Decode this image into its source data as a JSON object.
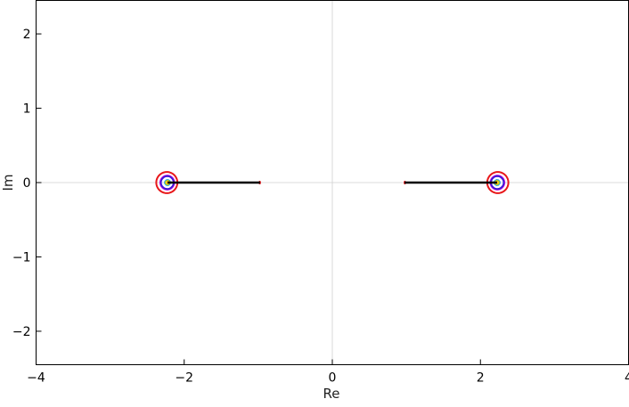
{
  "chart_data": {
    "type": "line",
    "title": "",
    "xlabel": "Re",
    "ylabel": "Im",
    "xlim": [
      -4,
      4
    ],
    "ylim": [
      -2.45,
      2.45
    ],
    "x_ticks": [
      -4,
      -2,
      0,
      2,
      4
    ],
    "y_ticks": [
      -2,
      -1,
      0,
      1,
      2
    ],
    "x_tick_labels": [
      "−4",
      "−2",
      "0",
      "2",
      "4"
    ],
    "y_tick_labels": [
      "−2",
      "−1",
      "0",
      "1",
      "2"
    ],
    "grid": "axes only",
    "foci": [
      -2.225,
      -0.975,
      0.975,
      2.225
    ],
    "series": [
      {
        "color": "#e8171a",
        "level": 0.125,
        "kind": "outer"
      },
      {
        "color": "#e11ce3",
        "level": 0.0225,
        "kind": "outer"
      },
      {
        "color": "#3f17d8",
        "level": 0.0,
        "kind": "lemniscate"
      },
      {
        "color": "#1c9be6",
        "level": -0.23,
        "kind": "pair"
      },
      {
        "color": "#25e899",
        "level": -0.32,
        "kind": "pair"
      },
      {
        "color": "#52d81b",
        "level": -0.345,
        "kind": "figure8"
      },
      {
        "color": "#f5c20b",
        "level": -0.363,
        "kind": "circles"
      }
    ],
    "segments": [
      {
        "color": "#000000",
        "x": [
          -2.225,
          -0.975
        ],
        "y": [
          0,
          0
        ]
      },
      {
        "color": "#000000",
        "x": [
          0.975,
          2.225
        ],
        "y": [
          0,
          0
        ]
      }
    ]
  }
}
